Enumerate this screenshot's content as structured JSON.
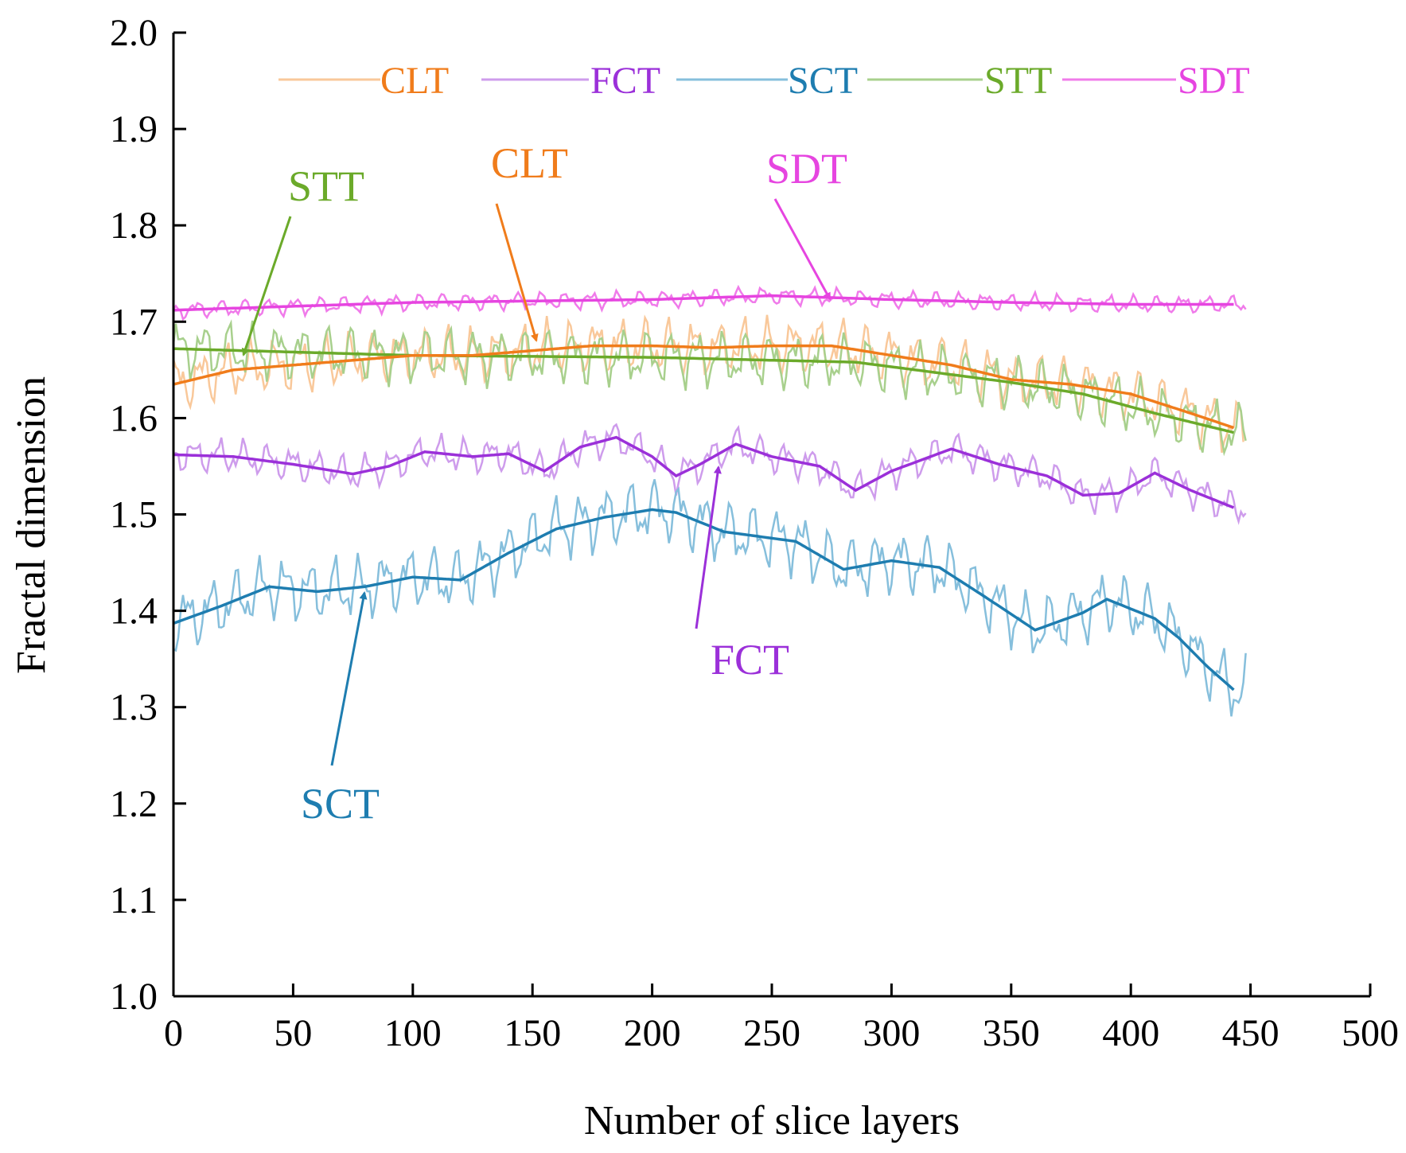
{
  "chart_data": {
    "type": "line",
    "xlabel": "Number of slice layers",
    "ylabel": "Fractal dimension",
    "xlim": [
      0,
      500
    ],
    "ylim": [
      1.0,
      2.0
    ],
    "xticks": [
      0,
      50,
      100,
      150,
      200,
      250,
      300,
      350,
      400,
      450,
      500
    ],
    "yticks": [
      "1.0",
      "1.1",
      "1.2",
      "1.3",
      "1.4",
      "1.5",
      "1.6",
      "1.7",
      "1.8",
      "1.9",
      "2.0"
    ],
    "grid": false,
    "legend_position": "top",
    "series": [
      {
        "name": "CLT",
        "color": "#F07C1B",
        "raw_color": "#F9C89A",
        "raw_end_x": 447,
        "raw_amplitude": 0.035,
        "trend": [
          [
            0,
            1.635
          ],
          [
            25,
            1.65
          ],
          [
            50,
            1.655
          ],
          [
            75,
            1.66
          ],
          [
            100,
            1.665
          ],
          [
            125,
            1.665
          ],
          [
            150,
            1.67
          ],
          [
            175,
            1.675
          ],
          [
            200,
            1.675
          ],
          [
            225,
            1.673
          ],
          [
            250,
            1.675
          ],
          [
            275,
            1.675
          ],
          [
            300,
            1.665
          ],
          [
            325,
            1.655
          ],
          [
            350,
            1.64
          ],
          [
            375,
            1.635
          ],
          [
            400,
            1.625
          ],
          [
            425,
            1.605
          ],
          [
            443,
            1.59
          ]
        ]
      },
      {
        "name": "FCT",
        "color": "#9B30D9",
        "raw_color": "#CE9CEC",
        "raw_end_x": 448,
        "raw_amplitude": 0.022,
        "trend": [
          [
            0,
            1.562
          ],
          [
            25,
            1.56
          ],
          [
            50,
            1.552
          ],
          [
            75,
            1.542
          ],
          [
            90,
            1.55
          ],
          [
            105,
            1.565
          ],
          [
            125,
            1.56
          ],
          [
            140,
            1.563
          ],
          [
            155,
            1.545
          ],
          [
            170,
            1.57
          ],
          [
            185,
            1.58
          ],
          [
            200,
            1.56
          ],
          [
            210,
            1.54
          ],
          [
            220,
            1.552
          ],
          [
            235,
            1.573
          ],
          [
            250,
            1.56
          ],
          [
            270,
            1.55
          ],
          [
            285,
            1.525
          ],
          [
            300,
            1.545
          ],
          [
            325,
            1.568
          ],
          [
            345,
            1.552
          ],
          [
            365,
            1.54
          ],
          [
            380,
            1.52
          ],
          [
            395,
            1.522
          ],
          [
            410,
            1.543
          ],
          [
            425,
            1.525
          ],
          [
            443,
            1.507
          ]
        ]
      },
      {
        "name": "SCT",
        "color": "#1E7DB0",
        "raw_color": "#86BFDC",
        "raw_end_x": 448,
        "raw_amplitude": 0.04,
        "trend": [
          [
            0,
            1.387
          ],
          [
            20,
            1.405
          ],
          [
            40,
            1.425
          ],
          [
            60,
            1.42
          ],
          [
            80,
            1.425
          ],
          [
            100,
            1.435
          ],
          [
            120,
            1.432
          ],
          [
            140,
            1.46
          ],
          [
            160,
            1.485
          ],
          [
            180,
            1.497
          ],
          [
            200,
            1.505
          ],
          [
            210,
            1.502
          ],
          [
            230,
            1.482
          ],
          [
            260,
            1.472
          ],
          [
            280,
            1.443
          ],
          [
            300,
            1.452
          ],
          [
            320,
            1.445
          ],
          [
            340,
            1.413
          ],
          [
            360,
            1.38
          ],
          [
            380,
            1.398
          ],
          [
            390,
            1.412
          ],
          [
            410,
            1.392
          ],
          [
            420,
            1.372
          ],
          [
            432,
            1.342
          ],
          [
            443,
            1.318
          ]
        ]
      },
      {
        "name": "STT",
        "color": "#6BAA2A",
        "raw_color": "#A8D08D",
        "raw_end_x": 448,
        "raw_amplitude": 0.035,
        "trend": [
          [
            0,
            1.672
          ],
          [
            100,
            1.665
          ],
          [
            200,
            1.663
          ],
          [
            250,
            1.66
          ],
          [
            285,
            1.658
          ],
          [
            310,
            1.65
          ],
          [
            350,
            1.637
          ],
          [
            380,
            1.625
          ],
          [
            410,
            1.605
          ],
          [
            443,
            1.585
          ]
        ]
      },
      {
        "name": "SDT",
        "color": "#E645E0",
        "raw_color": "#F07BEA",
        "raw_end_x": 448,
        "raw_amplitude": 0.011,
        "trend": [
          [
            0,
            1.712
          ],
          [
            100,
            1.72
          ],
          [
            200,
            1.723
          ],
          [
            250,
            1.727
          ],
          [
            300,
            1.723
          ],
          [
            350,
            1.72
          ],
          [
            400,
            1.718
          ],
          [
            443,
            1.718
          ]
        ]
      }
    ],
    "annotations": [
      {
        "label": "STT",
        "color": "#6BAA2A"
      },
      {
        "label": "CLT",
        "color": "#F07C1B"
      },
      {
        "label": "SDT",
        "color": "#E645E0"
      },
      {
        "label": "FCT",
        "color": "#9B30D9"
      },
      {
        "label": "SCT",
        "color": "#1E7DB0"
      }
    ]
  }
}
